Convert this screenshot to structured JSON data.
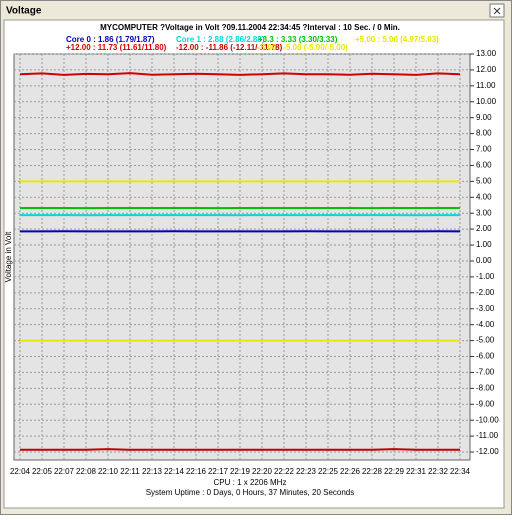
{
  "window": {
    "title": "Voltage"
  },
  "chart_data": {
    "type": "line",
    "title": "MYCOMPUTER ?Voltage in Volt ?09.11.2004 22:34:45 ?Interval : 10 Sec. / 0 Min.",
    "y_label": "Voltage in Volt",
    "footer": [
      "CPU : 1 x 2206 MHz",
      "System Uptime : 0 Days, 0 Hours, 37 Minutes, 20 Seconds"
    ],
    "categories": [
      "22:04",
      "22:05",
      "22:07",
      "22:08",
      "22:10",
      "22:11",
      "22:13",
      "22:14",
      "22:16",
      "22:17",
      "22:19",
      "22:20",
      "22:22",
      "22:23",
      "22:25",
      "22:26",
      "22:28",
      "22:29",
      "22:31",
      "22:32",
      "22:34"
    ],
    "ylim": [
      -12.5,
      13
    ],
    "yticks": [
      {
        "value": 13,
        "label": "13.00"
      },
      {
        "value": 12,
        "label": "12.00"
      },
      {
        "value": 11,
        "label": "11.00"
      },
      {
        "value": 10,
        "label": "10.00"
      },
      {
        "value": 9,
        "label": "9.00"
      },
      {
        "value": 8,
        "label": "8.00"
      },
      {
        "value": 7,
        "label": "7.00"
      },
      {
        "value": 6,
        "label": "6.00"
      },
      {
        "value": 5,
        "label": "5.00"
      },
      {
        "value": 4,
        "label": "4.00"
      },
      {
        "value": 3,
        "label": "3.00"
      },
      {
        "value": 2,
        "label": "2.00"
      },
      {
        "value": 1,
        "label": "1.00"
      },
      {
        "value": 0,
        "label": "0.00"
      },
      {
        "value": -1,
        "label": "-1.00"
      },
      {
        "value": -2,
        "label": "-2.00"
      },
      {
        "value": -3,
        "label": "-3.00"
      },
      {
        "value": -4,
        "label": "-4.00"
      },
      {
        "value": -5,
        "label": "-5.00"
      },
      {
        "value": -6,
        "label": "-6.00"
      },
      {
        "value": -7,
        "label": "-7.00"
      },
      {
        "value": -8,
        "label": "-8.00"
      },
      {
        "value": -9,
        "label": "-9.00"
      },
      {
        "value": -10,
        "label": "-10.00"
      },
      {
        "value": -11,
        "label": "-11.00"
      },
      {
        "value": -12,
        "label": "-12.00"
      }
    ],
    "grid": true,
    "series": [
      {
        "name": "Core 0 : 1.86 (1.79/1.87)",
        "color": "#0000b0",
        "values": [
          1.86,
          1.86,
          1.87,
          1.86,
          1.86,
          1.86,
          1.86,
          1.87,
          1.86,
          1.86,
          1.86,
          1.86,
          1.86,
          1.87,
          1.86,
          1.86,
          1.86,
          1.86,
          1.86,
          1.87,
          1.86
        ]
      },
      {
        "name": "Core 1 : 2.88 (2.86/2.88)",
        "color": "#00d8d8",
        "values": [
          2.88,
          2.88,
          2.88,
          2.87,
          2.88,
          2.88,
          2.88,
          2.88,
          2.88,
          2.88,
          2.87,
          2.88,
          2.88,
          2.88,
          2.88,
          2.88,
          2.88,
          2.88,
          2.87,
          2.88,
          2.88
        ]
      },
      {
        "name": "+3.3 : 3.33 (3.30/3.33)",
        "color": "#00c000",
        "values": [
          3.33,
          3.33,
          3.33,
          3.32,
          3.33,
          3.33,
          3.33,
          3.33,
          3.33,
          3.32,
          3.33,
          3.33,
          3.33,
          3.33,
          3.33,
          3.33,
          3.32,
          3.33,
          3.33,
          3.33,
          3.33
        ]
      },
      {
        "name": "+5.00 : 5.00 (4.97/5.03)",
        "color": "#e8e800",
        "values": [
          5,
          5,
          5,
          5,
          5,
          5,
          5,
          5,
          5,
          5,
          5,
          5,
          5,
          5,
          5,
          5,
          5,
          5,
          5,
          5,
          5
        ]
      },
      {
        "name": "+12.00 : 11.73 (11.61/11.80)",
        "color": "#d00000",
        "values": [
          11.73,
          11.78,
          11.69,
          11.75,
          11.73,
          11.8,
          11.7,
          11.73,
          11.76,
          11.73,
          11.69,
          11.73,
          11.78,
          11.73,
          11.73,
          11.7,
          11.76,
          11.73,
          11.69,
          11.78,
          11.73
        ]
      },
      {
        "name": "-12.00 : -11.86 (-12.11/-11.78)",
        "color": "#c00000",
        "values": [
          -11.86,
          -11.86,
          -11.86,
          -11.86,
          -11.82,
          -11.86,
          -11.86,
          -11.86,
          -11.86,
          -11.86,
          -11.86,
          -11.86,
          -11.86,
          -11.86,
          -11.86,
          -11.86,
          -11.86,
          -11.82,
          -11.86,
          -11.86,
          -11.86
        ]
      },
      {
        "name": "-5.00 : -5.00 (-5.00/-5.00)",
        "color": "#e8e800",
        "values": [
          -5,
          -5,
          -5,
          -5,
          -5,
          -5,
          -5,
          -5,
          -5,
          -5,
          -5,
          -5,
          -5,
          -5,
          -5,
          -5,
          -5,
          -5,
          -5,
          -5,
          -5
        ]
      }
    ]
  }
}
